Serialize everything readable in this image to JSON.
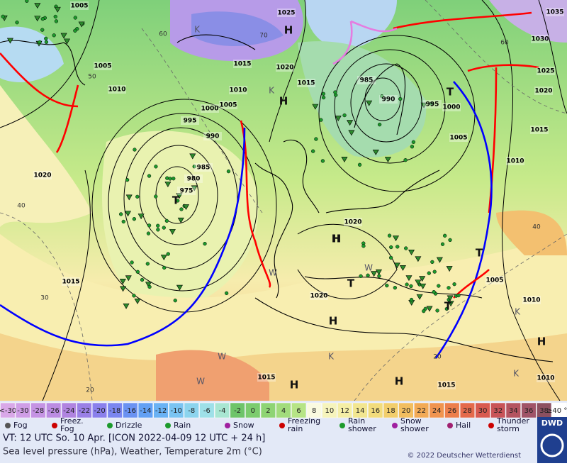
{
  "pressure_labels": [
    "1005",
    "1025",
    "1030",
    "1005",
    "1010",
    "1015",
    "1020",
    "1015",
    "1010",
    "1005",
    "1000",
    "995",
    "990",
    "985",
    "980",
    "975",
    "985",
    "990",
    "995",
    "1000",
    "1005",
    "1010",
    "1015",
    "1020",
    "1025",
    "1035",
    "1020",
    "1015",
    "1020",
    "1020",
    "1005",
    "1010",
    "1015",
    "1015",
    "1010"
  ],
  "isotherm_labels": [
    "60",
    "70",
    "50",
    "40",
    "30",
    "20",
    "60",
    "40",
    "20"
  ],
  "pressure_systems": [
    "H",
    "K",
    "H",
    "K",
    "T",
    "H",
    "T",
    "H",
    "H",
    "H",
    "H",
    "T",
    "T",
    "T",
    "W",
    "W",
    "K",
    "W",
    "K",
    "W",
    "K",
    "H"
  ],
  "temperature_scale": {
    "low_label": "<-30",
    "values": [
      -30,
      -28,
      -26,
      -24,
      -22,
      -20,
      -18,
      -16,
      -14,
      -12,
      -10,
      -8,
      -6,
      -4,
      -2,
      0,
      2,
      4,
      6,
      8,
      10,
      12,
      14,
      16,
      18,
      20,
      22,
      24,
      26,
      28,
      30,
      32,
      34,
      36,
      38
    ],
    "high_label": "≥40 °C",
    "colors": [
      "#d9a8e8",
      "#cf9ee6",
      "#c594e4",
      "#bb8ce2",
      "#b084e0",
      "#9a80e6",
      "#8a80ec",
      "#7a86f0",
      "#6a92f2",
      "#62a0f4",
      "#6ab2f4",
      "#7ac4f2",
      "#8cd4ee",
      "#9ee0e8",
      "#a8e6d2",
      "#6ec46a",
      "#7ccc6e",
      "#8ed474",
      "#a2dc7c",
      "#b6e486",
      "#fafae0",
      "#f6f4bc",
      "#f4eea6",
      "#f2e690",
      "#f2dc7c",
      "#f2ce6c",
      "#f2be60",
      "#f2aa56",
      "#f09450",
      "#ec7e4c",
      "#e46a4c",
      "#d85a50",
      "#c85458",
      "#b45460",
      "#a05468",
      "#8c5060",
      "#ffffff"
    ]
  },
  "weather_legend": [
    "Fog",
    "Freez. Fog",
    "Drizzle",
    "Rain",
    "Snow",
    "Freezing rain",
    "Rain shower",
    "Snow shower",
    "Hail",
    "Thunder storm"
  ],
  "valid_time": "VT: 12 UTC So.  10 Apr. [ICON 2022-04-09  12 UTC + 24 h]",
  "description": "Sea level pressure (hPa), Weather, Temperature 2m (°C)",
  "copyright": "© 2022 Deutscher Wetterdienst",
  "logo": "DWD"
}
